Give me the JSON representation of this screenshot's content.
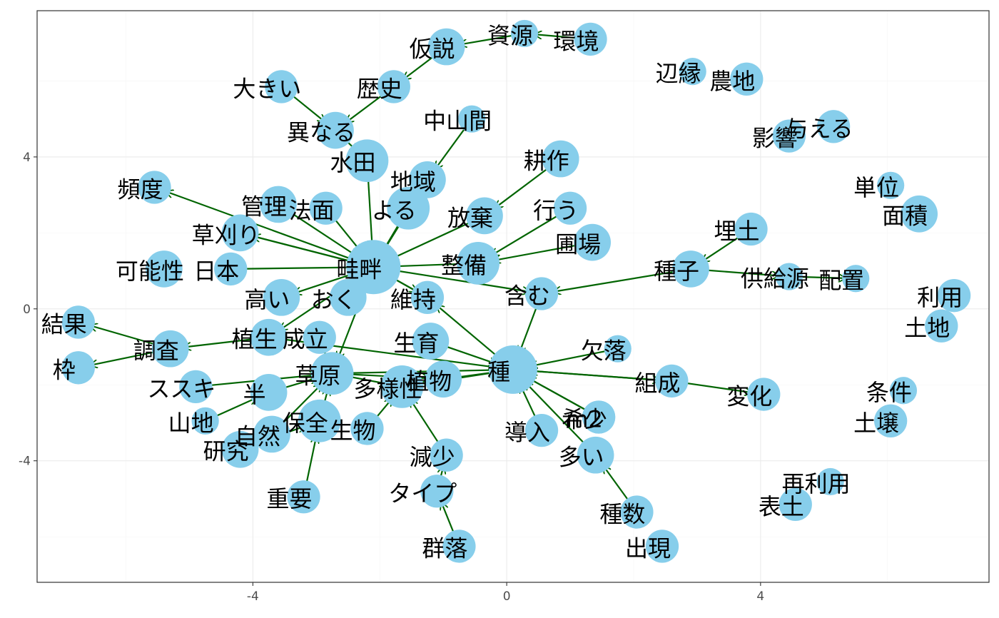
{
  "chart_data": {
    "type": "scatter",
    "title": "",
    "xlabel": "",
    "ylabel": "",
    "xlim": [
      -7.4,
      7.6
    ],
    "ylim": [
      -7.2,
      7.85
    ],
    "x_ticks": [
      -4,
      0,
      4
    ],
    "y_ticks": [
      -4,
      0,
      4
    ],
    "x_tick_labels": [
      "-4",
      "0",
      "4"
    ],
    "y_tick_labels": [
      "-4",
      "0",
      "4"
    ],
    "grid": true,
    "point_color": "#87CEEB",
    "arrow_color": "#006400",
    "points": [
      {
        "label": "資源",
        "x": 0.28,
        "y": 7.25,
        "size": 0.3
      },
      {
        "label": "環境",
        "x": 1.32,
        "y": 7.1,
        "size": 0.45
      },
      {
        "label": "仮説",
        "x": -0.95,
        "y": 6.9,
        "size": 0.55
      },
      {
        "label": "辺縁",
        "x": 2.93,
        "y": 6.25,
        "size": 0.3
      },
      {
        "label": "農地",
        "x": 3.78,
        "y": 6.05,
        "size": 0.45
      },
      {
        "label": "大きい",
        "x": -3.55,
        "y": 5.85,
        "size": 0.45
      },
      {
        "label": "歴史",
        "x": -1.78,
        "y": 5.85,
        "size": 0.45
      },
      {
        "label": "中山間",
        "x": -0.55,
        "y": 5.0,
        "size": 0.3
      },
      {
        "label": "与える",
        "x": 5.15,
        "y": 4.8,
        "size": 0.45
      },
      {
        "label": "影響",
        "x": 4.45,
        "y": 4.55,
        "size": 0.45
      },
      {
        "label": "異なる",
        "x": -2.7,
        "y": 4.7,
        "size": 0.55
      },
      {
        "label": "水田",
        "x": -2.2,
        "y": 3.9,
        "size": 0.7
      },
      {
        "label": "耕作",
        "x": 0.85,
        "y": 3.95,
        "size": 0.55
      },
      {
        "label": "地域",
        "x": -1.25,
        "y": 3.4,
        "size": 0.55
      },
      {
        "label": "頻度",
        "x": -5.55,
        "y": 3.2,
        "size": 0.45
      },
      {
        "label": "単位",
        "x": 6.05,
        "y": 3.25,
        "size": 0.3
      },
      {
        "label": "管理",
        "x": -3.6,
        "y": 2.75,
        "size": 0.55
      },
      {
        "label": "法面",
        "x": -2.85,
        "y": 2.65,
        "size": 0.45
      },
      {
        "label": "よる",
        "x": -1.55,
        "y": 2.65,
        "size": 0.7
      },
      {
        "label": "面積",
        "x": 6.5,
        "y": 2.5,
        "size": 0.55
      },
      {
        "label": "行う",
        "x": 1.0,
        "y": 2.65,
        "size": 0.45
      },
      {
        "label": "放棄",
        "x": -0.35,
        "y": 2.45,
        "size": 0.55
      },
      {
        "label": "埋土",
        "x": 3.85,
        "y": 2.1,
        "size": 0.45
      },
      {
        "label": "草刈り",
        "x": -4.2,
        "y": 2.0,
        "size": 0.55
      },
      {
        "label": "圃場",
        "x": 1.35,
        "y": 1.75,
        "size": 0.55
      },
      {
        "label": "可能性",
        "x": -5.4,
        "y": 1.05,
        "size": 0.55
      },
      {
        "label": "日本",
        "x": -4.35,
        "y": 1.05,
        "size": 0.45
      },
      {
        "label": "畦畔",
        "x": -2.1,
        "y": 1.1,
        "size": 1.0
      },
      {
        "label": "整備",
        "x": -0.45,
        "y": 1.2,
        "size": 0.7
      },
      {
        "label": "種子",
        "x": 2.9,
        "y": 1.05,
        "size": 0.55
      },
      {
        "label": "供給源",
        "x": 4.45,
        "y": 0.85,
        "size": 0.3
      },
      {
        "label": "配置",
        "x": 5.5,
        "y": 0.8,
        "size": 0.3
      },
      {
        "label": "利用",
        "x": 7.05,
        "y": 0.35,
        "size": 0.45
      },
      {
        "label": "高い",
        "x": -3.55,
        "y": 0.3,
        "size": 0.55
      },
      {
        "label": "おく",
        "x": -2.5,
        "y": 0.3,
        "size": 0.55
      },
      {
        "label": "維持",
        "x": -1.25,
        "y": 0.3,
        "size": 0.45
      },
      {
        "label": "含む",
        "x": 0.55,
        "y": 0.4,
        "size": 0.45
      },
      {
        "label": "結果",
        "x": -6.75,
        "y": -0.35,
        "size": 0.45
      },
      {
        "label": "土地",
        "x": 6.85,
        "y": -0.45,
        "size": 0.45
      },
      {
        "label": "植生",
        "x": -3.75,
        "y": -0.75,
        "size": 0.55
      },
      {
        "label": "成立",
        "x": -2.95,
        "y": -0.75,
        "size": 0.45
      },
      {
        "label": "調査",
        "x": -5.3,
        "y": -1.05,
        "size": 0.55
      },
      {
        "label": "生育",
        "x": -1.2,
        "y": -0.85,
        "size": 0.55
      },
      {
        "label": "欠落",
        "x": 1.75,
        "y": -1.05,
        "size": 0.3
      },
      {
        "label": "枠",
        "x": -6.75,
        "y": -1.55,
        "size": 0.45
      },
      {
        "label": "種",
        "x": 0.1,
        "y": -1.6,
        "size": 0.85
      },
      {
        "label": "草原",
        "x": -2.75,
        "y": -1.7,
        "size": 0.7
      },
      {
        "label": "植物",
        "x": -1.0,
        "y": -1.85,
        "size": 0.55
      },
      {
        "label": "多様性",
        "x": -1.65,
        "y": -2.05,
        "size": 0.7
      },
      {
        "label": "組成",
        "x": 2.6,
        "y": -1.9,
        "size": 0.45
      },
      {
        "label": "ススキ",
        "x": -4.9,
        "y": -2.05,
        "size": 0.45
      },
      {
        "label": "半",
        "x": -3.75,
        "y": -2.2,
        "size": 0.55
      },
      {
        "label": "変化",
        "x": 4.05,
        "y": -2.25,
        "size": 0.45
      },
      {
        "label": "条件",
        "x": 6.25,
        "y": -2.15,
        "size": 0.3
      },
      {
        "label": "希少",
        "x": 1.45,
        "y": -2.85,
        "size": 0.45
      },
      {
        "label": "保全",
        "x": -2.95,
        "y": -2.95,
        "size": 0.7
      },
      {
        "label": "山地",
        "x": -4.75,
        "y": -2.95,
        "size": 0.3
      },
      {
        "label": "土壌",
        "x": 6.05,
        "y": -2.95,
        "size": 0.45
      },
      {
        "label": "生物",
        "x": -2.2,
        "y": -3.15,
        "size": 0.45
      },
      {
        "label": "導入",
        "x": 0.55,
        "y": -3.2,
        "size": 0.45
      },
      {
        "label": "m2",
        "x": 1.45,
        "y": -2.85,
        "size": 0.45
      },
      {
        "label": "自然",
        "x": -3.7,
        "y": -3.3,
        "size": 0.55
      },
      {
        "label": "研究",
        "x": -4.2,
        "y": -3.7,
        "size": 0.55
      },
      {
        "label": "多い",
        "x": 1.4,
        "y": -3.85,
        "size": 0.55
      },
      {
        "label": "減少",
        "x": -0.95,
        "y": -3.85,
        "size": 0.45
      },
      {
        "label": "再利用",
        "x": 5.1,
        "y": -4.55,
        "size": 0.3
      },
      {
        "label": "表土",
        "x": 4.55,
        "y": -5.15,
        "size": 0.45
      },
      {
        "label": "重要",
        "x": -3.2,
        "y": -4.95,
        "size": 0.45
      },
      {
        "label": "タイプ",
        "x": -1.1,
        "y": -4.8,
        "size": 0.45
      },
      {
        "label": "種数",
        "x": 2.05,
        "y": -5.35,
        "size": 0.45
      },
      {
        "label": "群落",
        "x": -0.75,
        "y": -6.25,
        "size": 0.45
      },
      {
        "label": "出現",
        "x": 2.45,
        "y": -6.25,
        "size": 0.45
      }
    ]
  }
}
